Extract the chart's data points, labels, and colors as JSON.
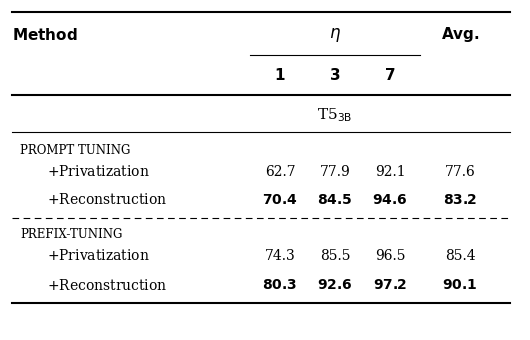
{
  "header_col": "Method",
  "header_eta": "η",
  "header_sub": [
    "1",
    "3",
    "7"
  ],
  "header_avg": "Avg.",
  "model_label": "T5",
  "model_sub": "3B",
  "sections": [
    {
      "section_label": "PROMPT TUNING",
      "rows": [
        {
          "method": "+Privatization",
          "values": [
            "62.7",
            "77.9",
            "92.1",
            "77.6"
          ],
          "bold": [
            false,
            false,
            false,
            false
          ]
        },
        {
          "method": "+Reconstruction",
          "values": [
            "70.4",
            "84.5",
            "94.6",
            "83.2"
          ],
          "bold": [
            true,
            true,
            true,
            true
          ]
        }
      ],
      "dashed_below": true
    },
    {
      "section_label": "PREFIX-TUNING",
      "rows": [
        {
          "method": "+Privatization",
          "values": [
            "74.3",
            "85.5",
            "96.5",
            "85.4"
          ],
          "bold": [
            false,
            false,
            false,
            false
          ]
        },
        {
          "method": "+Reconstruction",
          "values": [
            "80.3",
            "92.6",
            "97.2",
            "90.1"
          ],
          "bold": [
            true,
            true,
            true,
            true
          ]
        }
      ],
      "dashed_below": false
    }
  ],
  "background": "#ffffff",
  "lw_thick": 1.5,
  "lw_thin": 0.8,
  "font_size_header": 11,
  "font_size_section": 8.5,
  "font_size_row": 10,
  "font_size_eta": 12
}
